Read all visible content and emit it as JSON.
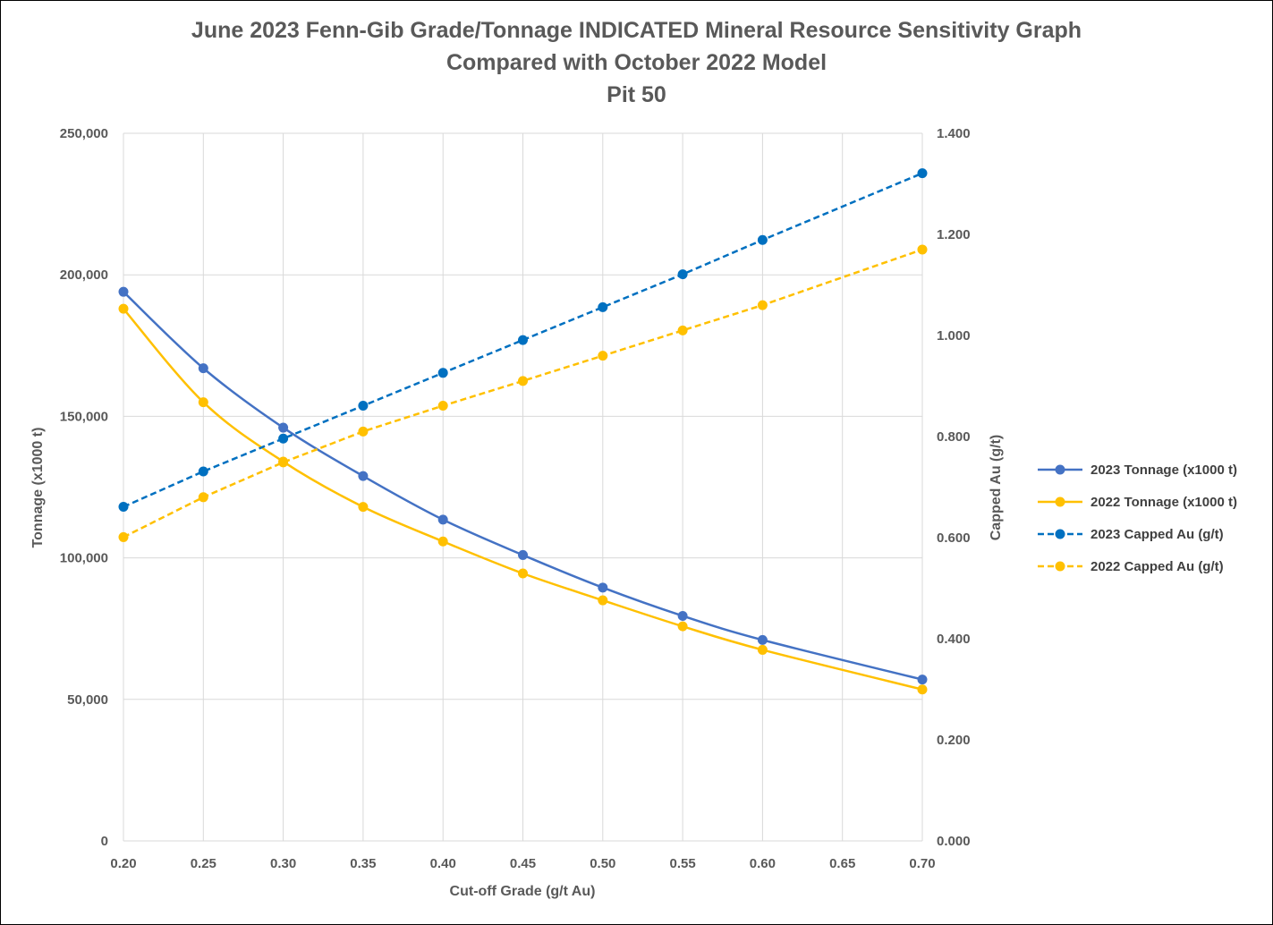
{
  "chart_data": {
    "type": "line",
    "title": "June 2023 Fenn-Gib Grade/Tonnage INDICATED Mineral Resource Sensitivity Graph",
    "subtitle": "Compared with October 2022 Model",
    "subtitle2": "Pit 50",
    "xlabel": "Cut-off Grade (g/t Au)",
    "ylabel": "Tonnage (x1000 t)",
    "y2label": "Capped Au (g/t)",
    "xlim": [
      0.2,
      0.7
    ],
    "ylim": [
      0,
      250000
    ],
    "y2lim": [
      0,
      1.4
    ],
    "x_ticks": [
      "0.20",
      "0.25",
      "0.30",
      "0.35",
      "0.40",
      "0.45",
      "0.50",
      "0.55",
      "0.60",
      "0.65",
      "0.70"
    ],
    "y_ticks": [
      "0",
      "50,000",
      "100,000",
      "150,000",
      "200,000",
      "250,000"
    ],
    "y2_ticks": [
      "0.000",
      "0.200",
      "0.400",
      "0.600",
      "0.800",
      "1.000",
      "1.200",
      "1.400"
    ],
    "grid": true,
    "legend_position": "right",
    "series": [
      {
        "name": "2023 Tonnage (x1000 t)",
        "axis": "left",
        "color": "#4472C4",
        "dashed": false,
        "smooth": true,
        "x": [
          0.2,
          0.25,
          0.3,
          0.35,
          0.4,
          0.45,
          0.5,
          0.55,
          0.6,
          0.7
        ],
        "values": [
          194000,
          167000,
          146000,
          128900,
          113500,
          101000,
          89500,
          79500,
          71000,
          57000
        ]
      },
      {
        "name": "2022 Tonnage (x1000 t)",
        "axis": "left",
        "color": "#FFC000",
        "dashed": false,
        "smooth": true,
        "x": [
          0.2,
          0.25,
          0.3,
          0.35,
          0.4,
          0.45,
          0.5,
          0.55,
          0.6,
          0.7
        ],
        "values": [
          188000,
          155000,
          134000,
          118000,
          105800,
          94500,
          85000,
          75800,
          67500,
          53500
        ]
      },
      {
        "name": "2023 Capped Au (g/t)",
        "axis": "right",
        "color": "#0070C0",
        "dashed": true,
        "smooth": false,
        "x": [
          0.2,
          0.25,
          0.3,
          0.35,
          0.4,
          0.45,
          0.5,
          0.55,
          0.6,
          0.7
        ],
        "values": [
          0.661,
          0.731,
          0.796,
          0.861,
          0.926,
          0.991,
          1.056,
          1.121,
          1.189,
          1.321
        ]
      },
      {
        "name": "2022 Capped Au (g/t)",
        "axis": "right",
        "color": "#FFC000",
        "dashed": true,
        "smooth": false,
        "x": [
          0.2,
          0.25,
          0.3,
          0.35,
          0.4,
          0.45,
          0.5,
          0.55,
          0.6,
          0.7
        ],
        "values": [
          0.601,
          0.68,
          0.749,
          0.81,
          0.861,
          0.91,
          0.96,
          1.01,
          1.06,
          1.17
        ]
      }
    ]
  }
}
